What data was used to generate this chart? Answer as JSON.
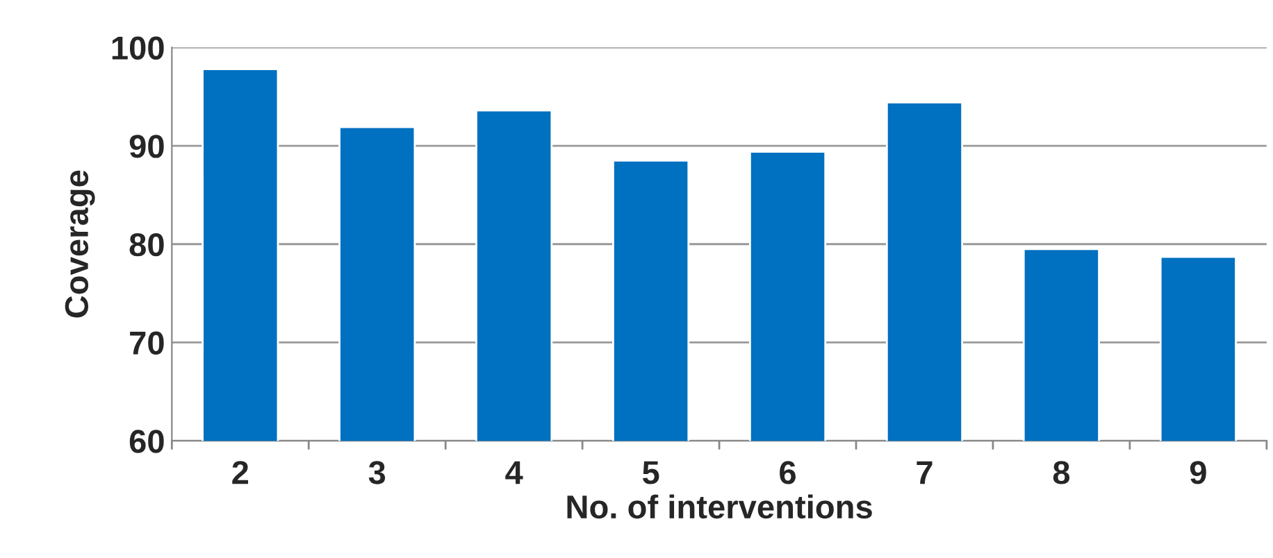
{
  "chart_data": {
    "type": "bar",
    "xlabel": "No. of interventions",
    "ylabel": "Coverage",
    "categories": [
      "2",
      "3",
      "4",
      "5",
      "6",
      "7",
      "8",
      "9"
    ],
    "values": [
      97.8,
      91.9,
      93.6,
      88.5,
      89.4,
      94.4,
      79.5,
      78.7
    ],
    "color": "#0070c0",
    "ylim": [
      60,
      100
    ],
    "yticks": [
      60,
      70,
      80,
      90,
      100
    ],
    "grid": "y"
  }
}
